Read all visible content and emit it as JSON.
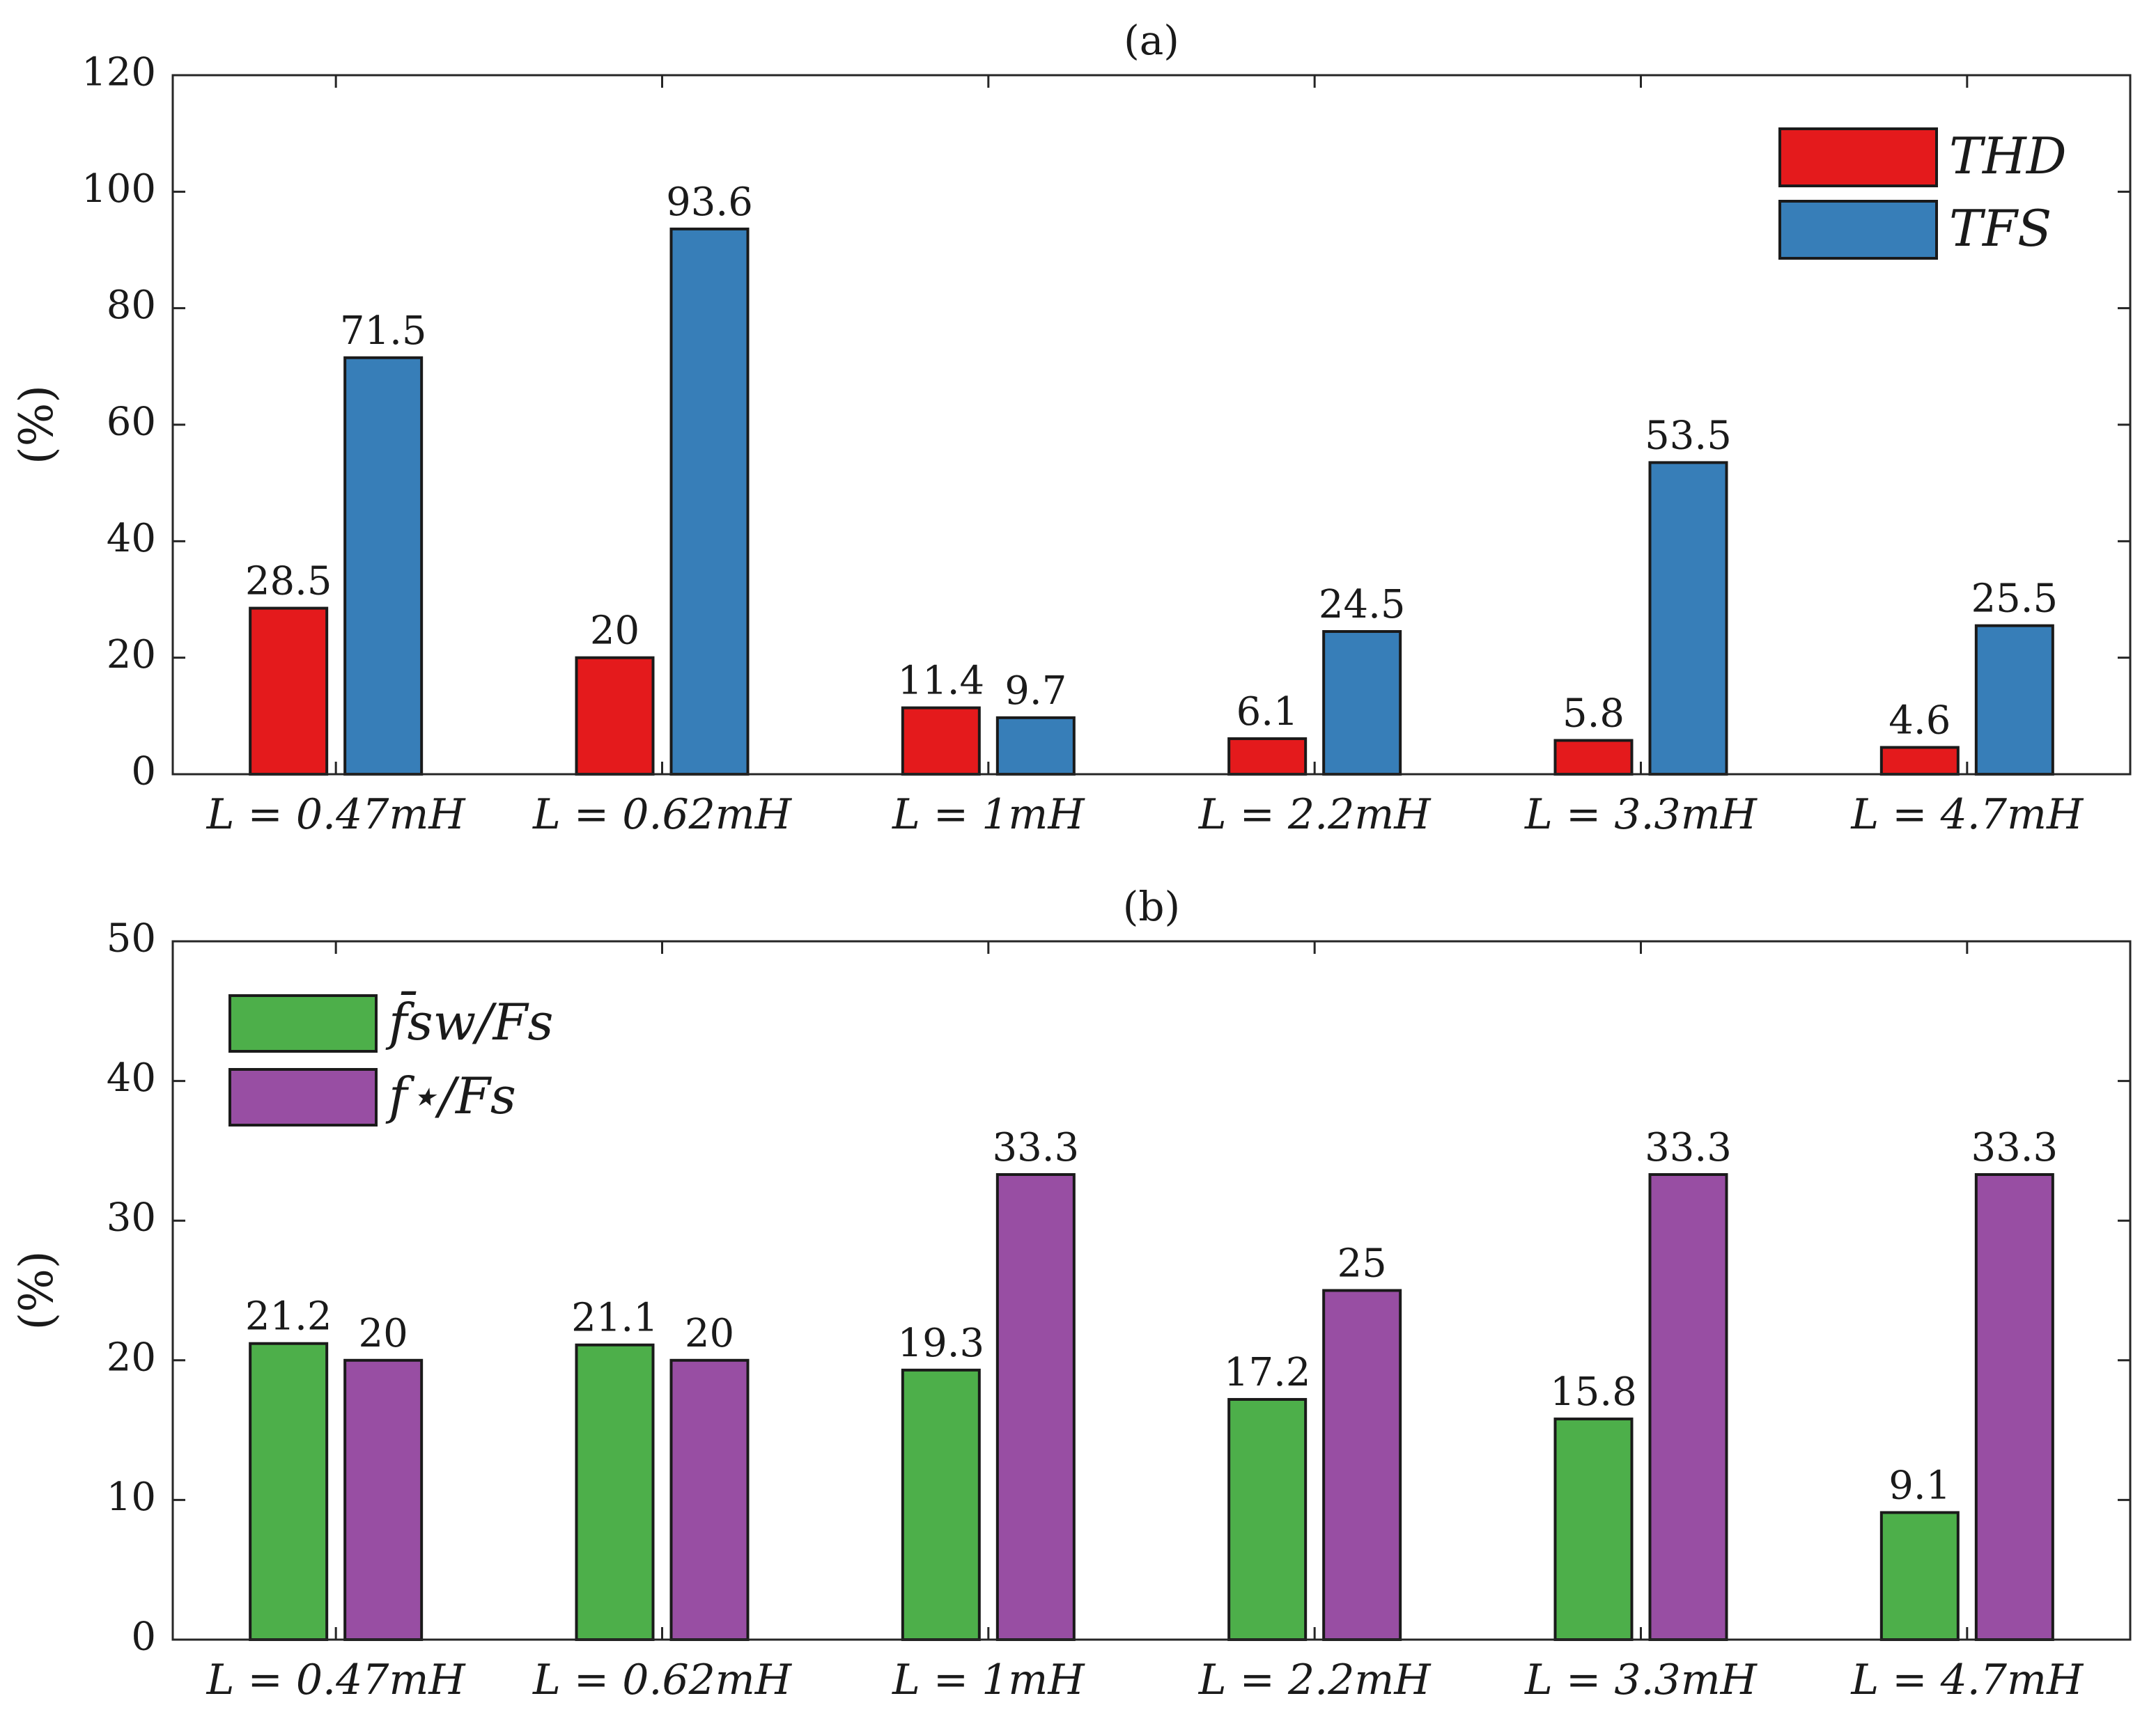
{
  "chart_data": [
    {
      "type": "bar",
      "title": "(a)",
      "ylabel": "(%)",
      "ylim": [
        0,
        120
      ],
      "yticks": [
        0,
        20,
        40,
        60,
        80,
        100,
        120
      ],
      "categories": [
        "L = 0.47mH",
        "L = 0.62mH",
        "L = 1mH",
        "L = 2.2mH",
        "L = 3.3mH",
        "L = 4.7mH"
      ],
      "series": [
        {
          "name": "THD",
          "color": "#e41a1c",
          "values": [
            28.5,
            20,
            11.4,
            6.1,
            5.8,
            4.6
          ],
          "labels": [
            "28.5",
            "20",
            "11.4",
            "6.1",
            "5.8",
            "4.6"
          ]
        },
        {
          "name": "TFS",
          "color": "#377eb8",
          "values": [
            71.5,
            93.6,
            9.7,
            24.5,
            53.5,
            25.5
          ],
          "labels": [
            "71.5",
            "93.6",
            "9.7",
            "24.5",
            "53.5",
            "25.5"
          ]
        }
      ],
      "legend": "top-right",
      "grid": false
    },
    {
      "type": "bar",
      "title": "(b)",
      "ylabel": "(%)",
      "ylim": [
        0,
        50
      ],
      "yticks": [
        0,
        10,
        20,
        30,
        40,
        50
      ],
      "categories": [
        "L = 0.47mH",
        "L = 0.62mH",
        "L = 1mH",
        "L = 2.2mH",
        "L = 3.3mH",
        "L = 4.7mH"
      ],
      "series": [
        {
          "name": "f̄sw/Fs",
          "color": "#4daf4a",
          "values": [
            21.2,
            21.1,
            19.3,
            17.2,
            15.8,
            9.1
          ],
          "labels": [
            "21.2",
            "21.1",
            "19.3",
            "17.2",
            "15.8",
            "9.1"
          ]
        },
        {
          "name": "f⋆/Fs",
          "color": "#984ea3",
          "values": [
            20,
            20,
            33.3,
            25,
            33.3,
            33.3
          ],
          "labels": [
            "20",
            "20",
            "33.3",
            "25",
            "33.3",
            "33.3"
          ]
        }
      ],
      "legend": "top-left",
      "grid": false
    }
  ]
}
